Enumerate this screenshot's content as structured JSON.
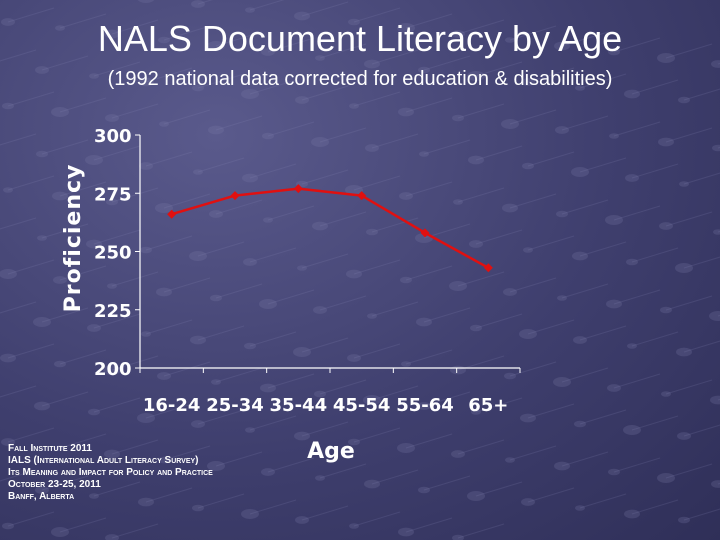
{
  "slide": {
    "title": "NALS Document Literacy by Age",
    "subtitle": "(1992 national data corrected for education & disabilities)",
    "footer_lines": [
      "Fall Institute 2011",
      "IALS (International Adult Literacy Survey)",
      "Its Meaning and Impact for Policy and Practice",
      "October 23-25, 2011",
      "Banff, Alberta"
    ]
  },
  "chart_data": {
    "type": "line",
    "categories": [
      "16-24",
      "25-34",
      "35-44",
      "45-54",
      "55-64",
      "65+"
    ],
    "series": [
      {
        "values": [
          266,
          274,
          277,
          274,
          258,
          243
        ],
        "color": "#e01010"
      }
    ],
    "xlabel": "Age",
    "ylabel": "Proficiency",
    "ylim": [
      200,
      300
    ],
    "yticks": [
      300,
      275,
      250,
      225,
      200
    ],
    "grid": false,
    "legend": "none"
  }
}
